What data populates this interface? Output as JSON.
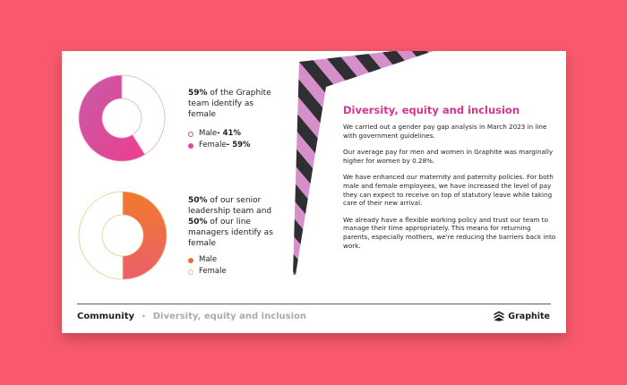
{
  "chart_data": [
    {
      "type": "pie",
      "categories": [
        "Male",
        "Female"
      ],
      "values": [
        41,
        59
      ],
      "colors": [
        "#ffffff",
        "#e2449a"
      ],
      "statement": {
        "bold": "59%",
        "text": " of the Graphite team identify as female"
      },
      "legend": [
        {
          "name": "Male",
          "value": " - 41%",
          "color": "#ffffff",
          "outline": "#e2449a"
        },
        {
          "name": "Female",
          "value": " - 59%",
          "color": "#e2449a",
          "outline": "#e2449a"
        }
      ]
    },
    {
      "type": "pie",
      "categories": [
        "Male",
        "Female"
      ],
      "values": [
        50,
        50
      ],
      "colors": [
        "#ef6b3a",
        "#ffffff"
      ],
      "statement": {
        "bold1": "50%",
        "text1": " of our senior leadership team and ",
        "bold2": "50%",
        "text2": " of our line managers identify as female"
      },
      "legend": [
        {
          "name": "Male",
          "value": "",
          "color": "#ef6b3a",
          "outline": "#ef6b3a"
        },
        {
          "name": "Female",
          "value": "",
          "color": "#ffffff",
          "outline": "#e7c98a"
        }
      ]
    }
  ],
  "content": {
    "heading": "Diversity, equity and inclusion",
    "paragraphs": [
      "We carried out a gender pay gap analysis in March 2023 in line with government guidelines.",
      "Our average pay for men and women in Graphite was marginally higher for women by 0.28%.",
      "We have enhanced our maternity and paternity policies. For both male and female employees, we have increased the level of pay they can expect to receive on top of statutory leave while taking care of their new arrival.",
      "We already have a flexible working policy and trust our team to manage their time appropriately. This means for returning parents, especially mothers, we're reducing the barriers back into work."
    ]
  },
  "footer": {
    "section": "Community",
    "separator": "•",
    "subsection": "Diversity, equity and inclusion",
    "brand": "Graphite"
  },
  "colors": {
    "background": "#f85a6c",
    "accent_pink": "#d9338f",
    "accent_orange": "#ef6b3a",
    "ribbon_dark": "#2f2f33",
    "ribbon_light": "#d58fc9"
  }
}
